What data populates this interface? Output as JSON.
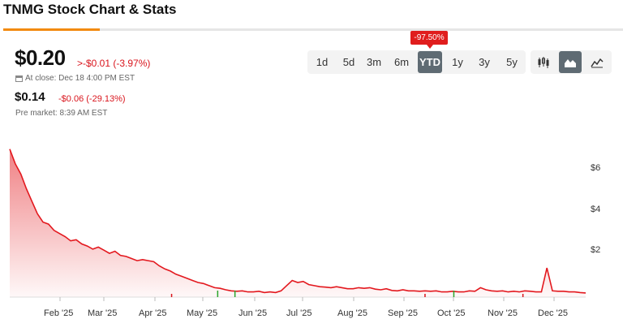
{
  "header": {
    "title": "TNMG Stock Chart & Stats"
  },
  "quote": {
    "price": "$0.20",
    "change": ">-$0.01 (-3.97%)",
    "close_label": "At close: Dec 18 4:00 PM EST",
    "pre_price": "$0.14",
    "pre_change": "-$0.06 (-29.13%)",
    "pre_label": "Pre market: 8:39 AM EST"
  },
  "range_tabs": {
    "items": [
      "1d",
      "5d",
      "3m",
      "6m",
      "YTD",
      "1y",
      "3y",
      "5y"
    ],
    "selected": "YTD",
    "badge": "-97.50%"
  },
  "chart_types": {
    "items": [
      "candlestick-chart-icon",
      "area-chart-icon",
      "line-chart-icon"
    ],
    "selected": "area-chart-icon"
  },
  "colors": {
    "accent": "#f28a10",
    "line": "#e3181e",
    "negative": "#d9141c",
    "volume_up": "#2aa52a"
  },
  "chart_data": {
    "type": "area",
    "x_ticks": [
      "Feb '25",
      "Mar '25",
      "Apr '25",
      "May '25",
      "Jun '25",
      "Jul '25",
      "Aug '25",
      "Sep '25",
      "Oct '25",
      "Nov '25",
      "Dec '25"
    ],
    "y_ticks": [
      "$6",
      "$4",
      "$2"
    ],
    "ylim": [
      0,
      7.4
    ],
    "series": [
      {
        "values": [
          7.1,
          6.4,
          5.9,
          5.2,
          4.6,
          4.0,
          3.6,
          3.5,
          3.2,
          3.05,
          2.9,
          2.7,
          2.75,
          2.55,
          2.45,
          2.3,
          2.4,
          2.25,
          2.1,
          2.2,
          2.0,
          1.95,
          1.85,
          1.75,
          1.8,
          1.75,
          1.7,
          1.5,
          1.35,
          1.25,
          1.1,
          1.0,
          0.9,
          0.8,
          0.7,
          0.65,
          0.55,
          0.45,
          0.42,
          0.35,
          0.3,
          0.28,
          0.3,
          0.25,
          0.25,
          0.28,
          0.22,
          0.25,
          0.22,
          0.3,
          0.55,
          0.8,
          0.7,
          0.75,
          0.6,
          0.55,
          0.5,
          0.48,
          0.45,
          0.5,
          0.45,
          0.4,
          0.4,
          0.45,
          0.42,
          0.45,
          0.38,
          0.35,
          0.4,
          0.32,
          0.3,
          0.35,
          0.3,
          0.3,
          0.28,
          0.3,
          0.28,
          0.3,
          0.25,
          0.25,
          0.28,
          0.25,
          0.25,
          0.3,
          0.28,
          0.45,
          0.35,
          0.3,
          0.28,
          0.3,
          0.25,
          0.28,
          0.25,
          0.3,
          0.28,
          0.25,
          0.25,
          1.4,
          0.3,
          0.28,
          0.28,
          0.25,
          0.25,
          0.22,
          0.2
        ]
      }
    ],
    "volume_spikes": [
      {
        "x_frac": 0.36,
        "color": "green"
      },
      {
        "x_frac": 0.39,
        "color": "green"
      },
      {
        "x_frac": 0.77,
        "color": "green"
      },
      {
        "x_frac": 0.28,
        "color": "red"
      },
      {
        "x_frac": 0.72,
        "color": "red"
      },
      {
        "x_frac": 0.89,
        "color": "red"
      }
    ],
    "grid": false
  }
}
